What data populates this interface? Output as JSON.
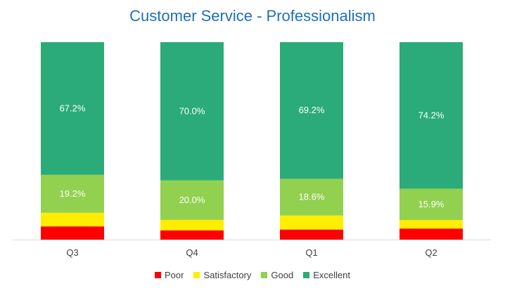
{
  "chart_data": {
    "type": "bar",
    "stacked": true,
    "normalized_percent": true,
    "title": "Customer Service - Professionalism",
    "categories": [
      "Q3",
      "Q4",
      "Q1",
      "Q2"
    ],
    "series": [
      {
        "name": "Poor",
        "color": "#ff0000",
        "values": [
          6.7,
          4.7,
          5.1,
          5.6
        ]
      },
      {
        "name": "Satisfactory",
        "color": "#ffee00",
        "values": [
          6.9,
          5.3,
          7.1,
          4.3
        ]
      },
      {
        "name": "Good",
        "color": "#92d050",
        "values": [
          19.2,
          20.0,
          18.6,
          15.9
        ]
      },
      {
        "name": "Excellent",
        "color": "#2bab7a",
        "values": [
          67.2,
          70.0,
          69.2,
          74.2
        ]
      }
    ],
    "data_labels": {
      "Good": [
        "19.2%",
        "20.0%",
        "18.6%",
        "15.9%"
      ],
      "Excellent": [
        "67.2%",
        "70.0%",
        "69.2%",
        "74.2%"
      ]
    },
    "ylim": [
      0,
      100
    ],
    "grid": false,
    "legend_position": "bottom"
  }
}
